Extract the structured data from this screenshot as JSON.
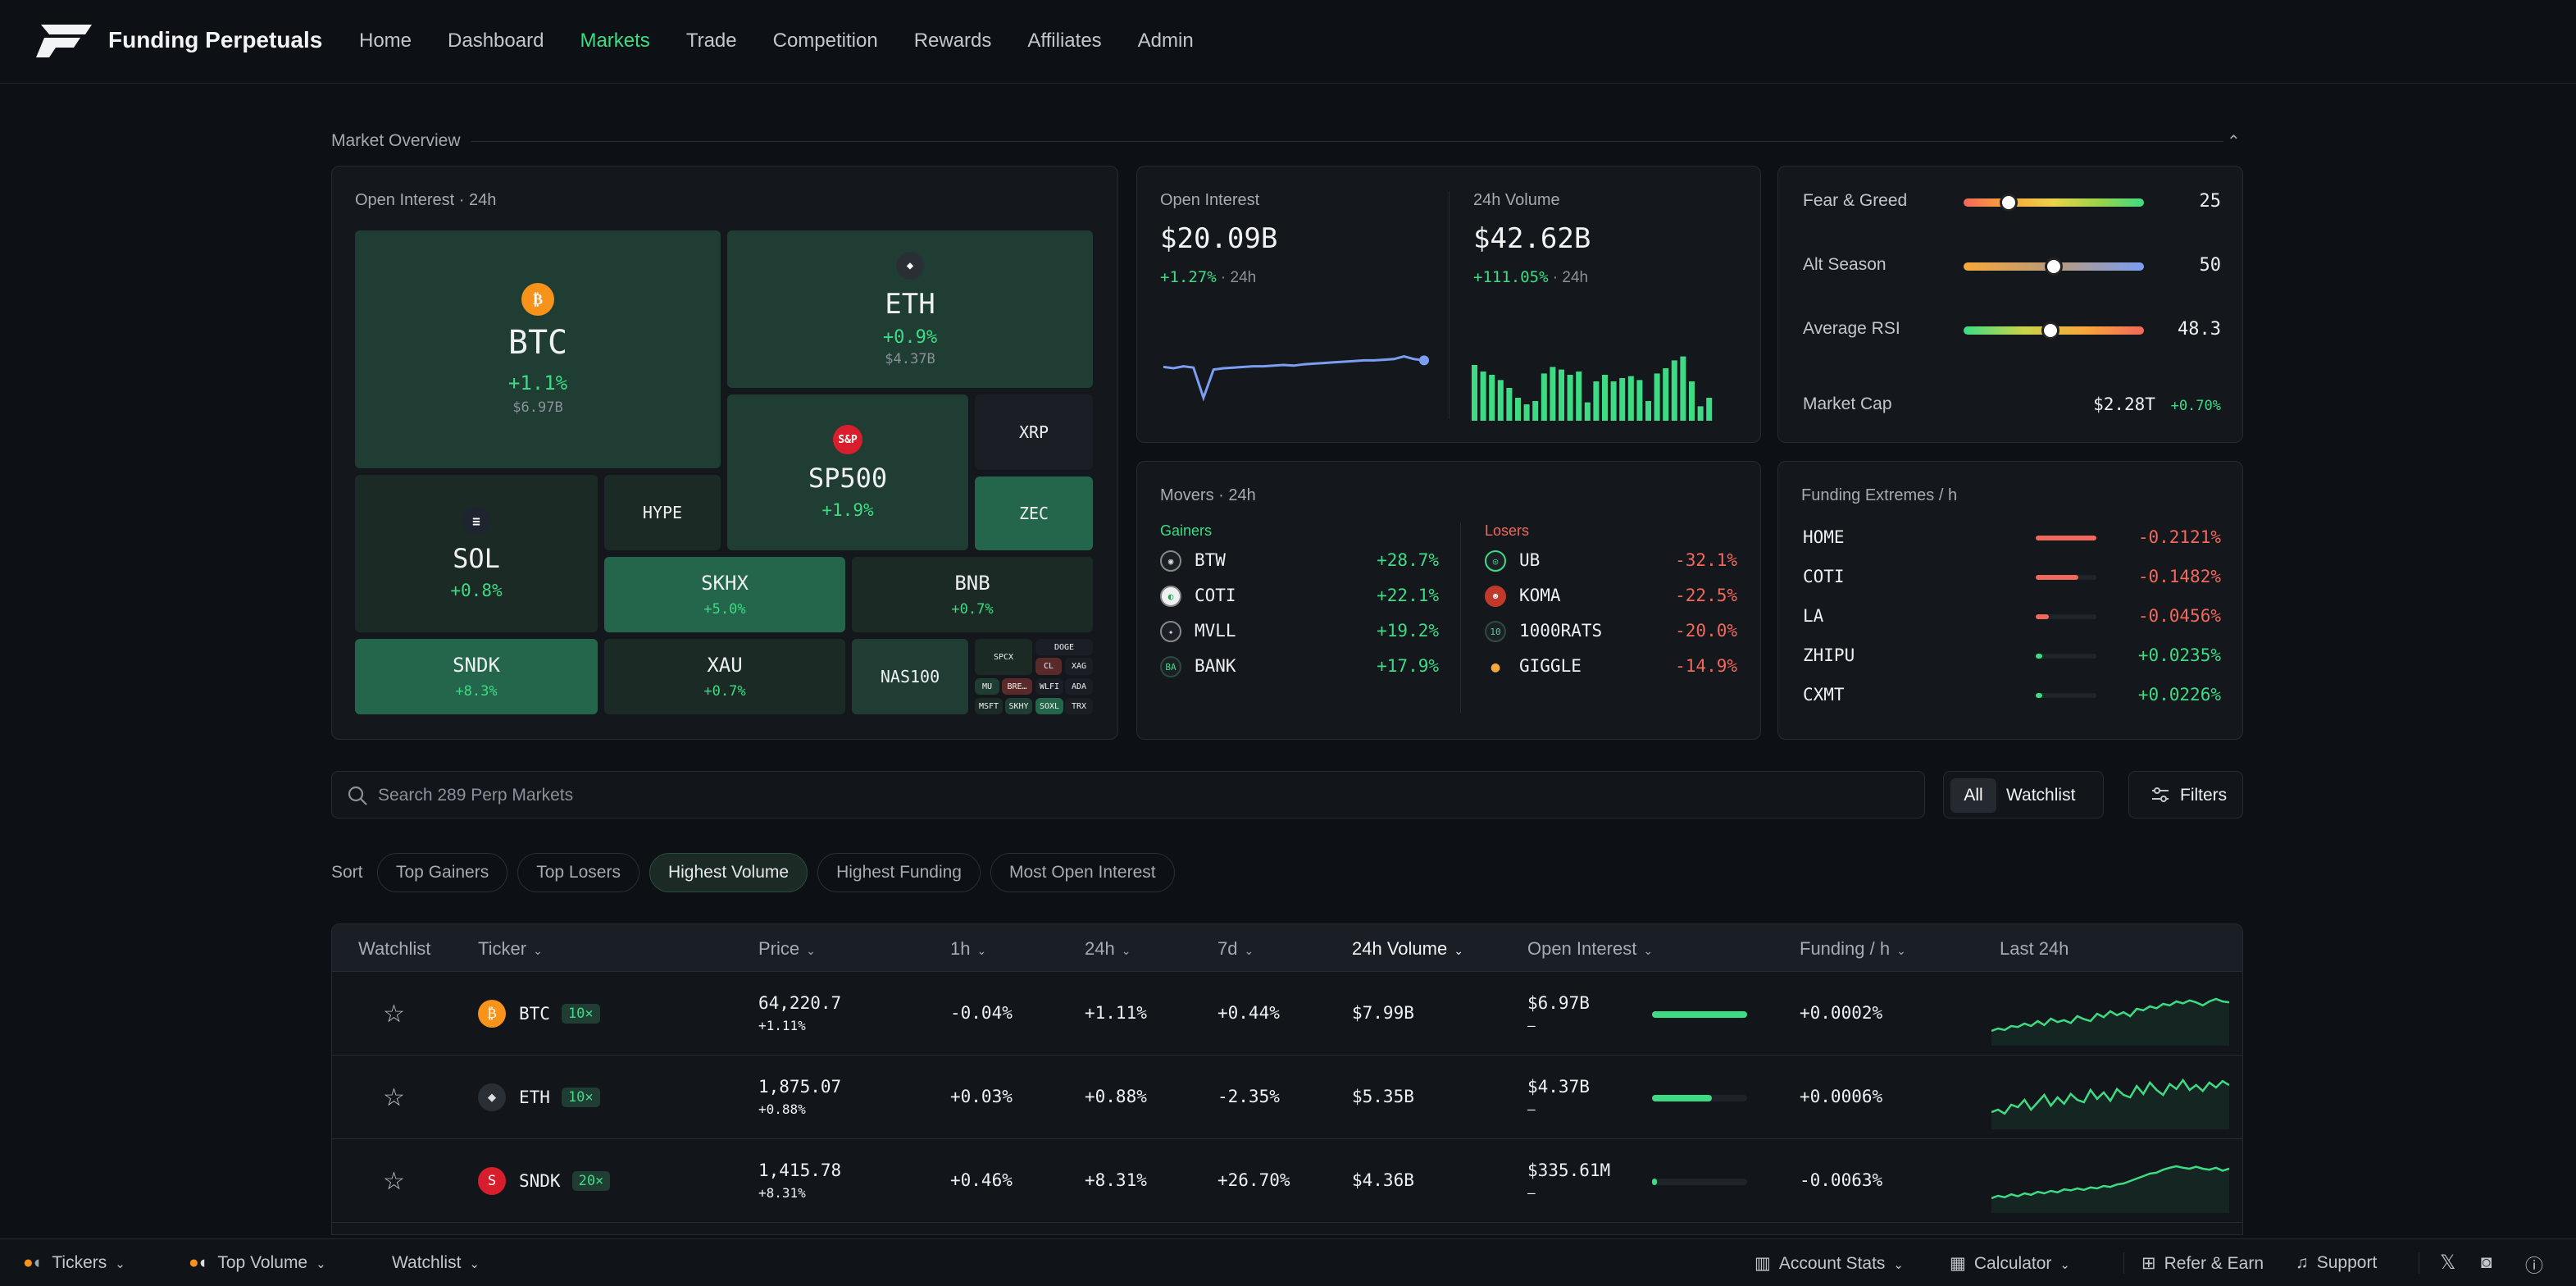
{
  "brand": "Funding Perpetuals",
  "nav": [
    "Home",
    "Dashboard",
    "Markets",
    "Trade",
    "Competition",
    "Rewards",
    "Affiliates",
    "Admin"
  ],
  "nav_active": "Markets",
  "overview": {
    "title": "Market Overview",
    "heatmap": {
      "title": "Open Interest · 24h",
      "tiles": [
        {
          "sym": "BTC",
          "chg": "+1.1%",
          "oi": "$6.97B"
        },
        {
          "sym": "ETH",
          "chg": "+0.9%",
          "oi": "$4.37B"
        },
        {
          "sym": "SP500",
          "chg": "+1.9%"
        },
        {
          "sym": "XRP"
        },
        {
          "sym": "ZEC"
        },
        {
          "sym": "SOL",
          "chg": "+0.8%"
        },
        {
          "sym": "HYPE"
        },
        {
          "sym": "SKHX",
          "chg": "+5.0%"
        },
        {
          "sym": "BNB",
          "chg": "+0.7%"
        },
        {
          "sym": "SNDK",
          "chg": "+8.3%"
        },
        {
          "sym": "XAU",
          "chg": "+0.7%"
        },
        {
          "sym": "NAS100"
        }
      ],
      "small_tiles": [
        "SPCX",
        "DOGE",
        "CL",
        "XAG",
        "MU",
        "BRE…",
        "WLFI",
        "ADA",
        "MSFT",
        "SKHY",
        "SOXL",
        "TRX"
      ],
      "sp500_badge": "S&P"
    },
    "open_interest": {
      "label": "Open Interest",
      "value": "$20.09B",
      "change": "+1.27%",
      "period": "· 24h"
    },
    "volume": {
      "label": "24h Volume",
      "value": "$42.62B",
      "change": "+111.05%",
      "period": "· 24h"
    },
    "oi_series": [
      0.62,
      0.6,
      0.63,
      0.61,
      0.15,
      0.58,
      0.6,
      0.61,
      0.62,
      0.63,
      0.63,
      0.64,
      0.65,
      0.64,
      0.66,
      0.67,
      0.68,
      0.69,
      0.7,
      0.71,
      0.72,
      0.72,
      0.73,
      0.74,
      0.78,
      0.74,
      0.72
    ],
    "volume_bars": [
      0.85,
      0.75,
      0.7,
      0.62,
      0.5,
      0.35,
      0.25,
      0.3,
      0.72,
      0.82,
      0.78,
      0.7,
      0.75,
      0.28,
      0.6,
      0.7,
      0.6,
      0.65,
      0.68,
      0.62,
      0.3,
      0.72,
      0.8,
      0.92,
      0.98,
      0.6,
      0.22,
      0.35
    ],
    "gauges": [
      {
        "label": "Fear & Greed",
        "value": "25",
        "pos": 0.25
      },
      {
        "label": "Alt Season",
        "value": "50",
        "pos": 0.5
      },
      {
        "label": "Average RSI",
        "value": "48.3",
        "pos": 0.483
      }
    ],
    "market_cap": {
      "label": "Market Cap",
      "value": "$2.28T",
      "change": "+0.70%"
    },
    "movers": {
      "title": "Movers · 24h",
      "gainers_label": "Gainers",
      "losers_label": "Losers",
      "gainers": [
        {
          "sym": "BTW",
          "chg": "+28.7%"
        },
        {
          "sym": "COTI",
          "chg": "+22.1%"
        },
        {
          "sym": "MVLL",
          "chg": "+19.2%"
        },
        {
          "sym": "BANK",
          "chg": "+17.9%"
        }
      ],
      "losers": [
        {
          "sym": "UB",
          "chg": "-32.1%"
        },
        {
          "sym": "KOMA",
          "chg": "-22.5%"
        },
        {
          "sym": "1000RATS",
          "chg": "-20.0%"
        },
        {
          "sym": "GIGGLE",
          "chg": "-14.9%"
        }
      ]
    },
    "funding_extremes": {
      "title": "Funding Extremes / h",
      "rows": [
        {
          "sym": "HOME",
          "rate": "-0.2121%",
          "level": 1.0
        },
        {
          "sym": "COTI",
          "rate": "-0.1482%",
          "level": 0.7
        },
        {
          "sym": "LA",
          "rate": "-0.0456%",
          "level": 0.22
        },
        {
          "sym": "ZHIPU",
          "rate": "+0.0235%",
          "level": 0.11
        },
        {
          "sym": "CXMT",
          "rate": "+0.0226%",
          "level": 0.1
        }
      ]
    }
  },
  "search": {
    "placeholder": "Search 289 Perp Markets"
  },
  "segment": {
    "all": "All",
    "watchlist": "Watchlist"
  },
  "filters_label": "Filters",
  "sort": {
    "label": "Sort",
    "options": [
      "Top Gainers",
      "Top Losers",
      "Highest Volume",
      "Highest Funding",
      "Most Open Interest"
    ],
    "active": "Highest Volume"
  },
  "table": {
    "columns": [
      "Watchlist",
      "Ticker",
      "Price",
      "1h",
      "24h",
      "7d",
      "24h Volume",
      "Open Interest",
      "Funding / h",
      "Last 24h"
    ],
    "active_column": "24h Volume",
    "rows": [
      {
        "ticker": "BTC",
        "lev": "10×",
        "price": "64,220.7",
        "price_chg": "+1.11%",
        "h1": "-0.04%",
        "h24": "+1.11%",
        "d7": "+0.44%",
        "vol": "$7.99B",
        "oi": "$6.97B",
        "oi_sub": "–",
        "oi_level": 1.0,
        "funding": "+0.0002%",
        "spark": [
          0.2,
          0.25,
          0.22,
          0.3,
          0.28,
          0.35,
          0.3,
          0.4,
          0.32,
          0.45,
          0.38,
          0.42,
          0.36,
          0.5,
          0.44,
          0.4,
          0.55,
          0.48,
          0.6,
          0.52,
          0.58,
          0.5,
          0.65,
          0.62,
          0.7,
          0.66,
          0.75,
          0.72,
          0.8,
          0.76,
          0.82,
          0.78,
          0.72,
          0.8,
          0.85,
          0.8,
          0.78
        ]
      },
      {
        "ticker": "ETH",
        "lev": "10×",
        "price": "1,875.07",
        "price_chg": "+0.88%",
        "h1": "+0.03%",
        "h24": "+0.88%",
        "d7": "-2.35%",
        "vol": "$5.35B",
        "oi": "$4.37B",
        "oi_sub": "–",
        "oi_level": 0.63,
        "funding": "+0.0006%",
        "spark": [
          0.25,
          0.3,
          0.22,
          0.4,
          0.35,
          0.5,
          0.3,
          0.45,
          0.6,
          0.38,
          0.55,
          0.42,
          0.62,
          0.5,
          0.45,
          0.7,
          0.52,
          0.65,
          0.48,
          0.72,
          0.6,
          0.55,
          0.78,
          0.62,
          0.85,
          0.7,
          0.6,
          0.82,
          0.72,
          0.9,
          0.7,
          0.8,
          0.68,
          0.85,
          0.75,
          0.88,
          0.8
        ]
      },
      {
        "ticker": "SNDK",
        "lev": "20×",
        "price": "1,415.78",
        "price_chg": "+8.31%",
        "h1": "+0.46%",
        "h24": "+8.31%",
        "d7": "+26.70%",
        "vol": "$4.36B",
        "oi": "$335.61M",
        "oi_sub": "–",
        "oi_level": 0.05,
        "funding": "-0.0063%",
        "spark": [
          0.2,
          0.25,
          0.22,
          0.28,
          0.24,
          0.3,
          0.27,
          0.33,
          0.3,
          0.35,
          0.32,
          0.38,
          0.36,
          0.4,
          0.37,
          0.42,
          0.4,
          0.45,
          0.43,
          0.48,
          0.5,
          0.55,
          0.6,
          0.65,
          0.7,
          0.72,
          0.78,
          0.82,
          0.85,
          0.82,
          0.8,
          0.84,
          0.8,
          0.78,
          0.82,
          0.76,
          0.8
        ]
      }
    ]
  },
  "bottom": {
    "tickers": "Tickers",
    "top_volume": "Top Volume",
    "watchlist": "Watchlist",
    "account_stats": "Account Stats",
    "calculator": "Calculator",
    "refer": "Refer & Earn",
    "support": "Support"
  },
  "colors": {
    "accent": "#3ddc84",
    "negative": "#f2685a",
    "bg": "#0d1014",
    "panel": "#14181d"
  }
}
